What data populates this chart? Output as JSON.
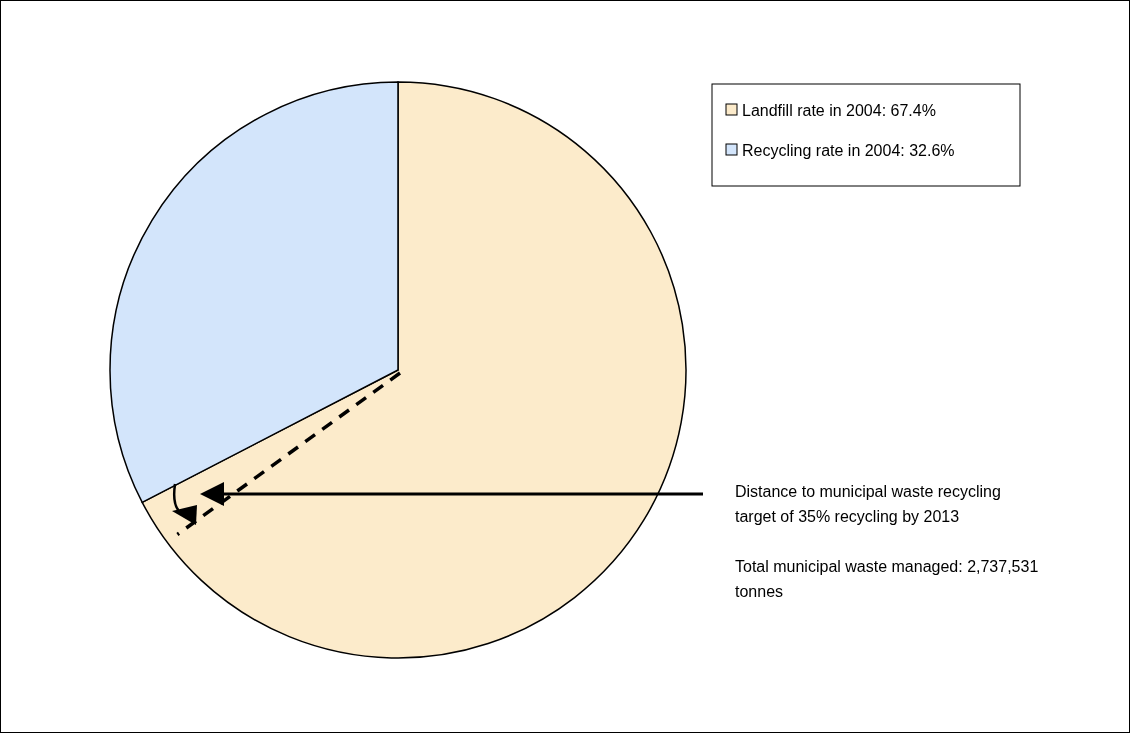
{
  "chart_data": {
    "type": "pie",
    "categories": [
      "Landfill rate in 2004: 67.4%",
      "Recycling rate in 2004: 32.6%"
    ],
    "values": [
      67.4,
      32.6
    ],
    "colors": [
      "#fcebcb",
      "#d3e5fb"
    ],
    "legend": "top right",
    "needle": "Landfill rate in 2004: 67.4%",
    "annotations": [
      "Distance to municipal waste recycling target of 35% recycling by 2013",
      "Total municipal waste managed: 2,737,531 tonnes"
    ]
  }
}
